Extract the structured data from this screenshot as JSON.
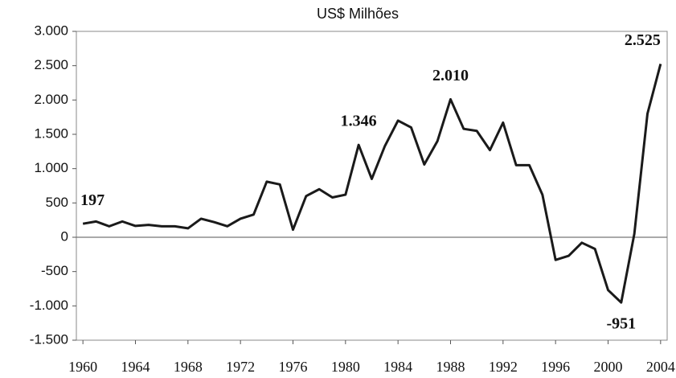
{
  "chart_data": {
    "type": "line",
    "title": "US$ Milhões",
    "x": [
      1960,
      1961,
      1962,
      1963,
      1964,
      1965,
      1966,
      1967,
      1968,
      1969,
      1970,
      1971,
      1972,
      1973,
      1974,
      1975,
      1976,
      1977,
      1978,
      1979,
      1980,
      1981,
      1982,
      1983,
      1984,
      1985,
      1986,
      1987,
      1988,
      1989,
      1990,
      1991,
      1992,
      1993,
      1994,
      1995,
      1996,
      1997,
      1998,
      1999,
      2000,
      2001,
      2002,
      2003,
      2004
    ],
    "values": [
      197,
      230,
      160,
      230,
      165,
      180,
      160,
      160,
      130,
      270,
      220,
      160,
      270,
      330,
      810,
      770,
      110,
      600,
      700,
      580,
      620,
      1346,
      850,
      1330,
      1700,
      1600,
      1060,
      1400,
      2010,
      1580,
      1550,
      1270,
      1670,
      1050,
      1050,
      620,
      -330,
      -270,
      -80,
      -170,
      -770,
      -951,
      50,
      1800,
      2525
    ],
    "value_labels": [
      "197",
      null,
      null,
      null,
      null,
      null,
      null,
      null,
      null,
      null,
      null,
      null,
      null,
      null,
      null,
      null,
      null,
      null,
      null,
      null,
      null,
      "1.346",
      null,
      null,
      null,
      null,
      null,
      null,
      "2.010",
      null,
      null,
      null,
      null,
      null,
      null,
      null,
      null,
      null,
      null,
      null,
      null,
      "-951",
      null,
      null,
      "2.525"
    ],
    "color": "#1a1a1a",
    "xlim": [
      1959.5,
      2004.5
    ],
    "xticks": [
      1960,
      1964,
      1968,
      1972,
      1976,
      1980,
      1984,
      1988,
      1992,
      1996,
      2000,
      2004
    ],
    "ylim": [
      -1500,
      3000
    ],
    "yticks": [
      {
        "value": -1500,
        "label": "-1.500"
      },
      {
        "value": -1000,
        "label": "-1.000"
      },
      -500,
      0,
      500,
      {
        "value": 1000,
        "label": "1.000"
      },
      {
        "value": 1500,
        "label": "1.500"
      },
      {
        "value": 2000,
        "label": "2.000"
      },
      {
        "value": 2500,
        "label": "2.500"
      },
      {
        "value": 3000,
        "label": "3.000"
      }
    ],
    "grid": false
  }
}
